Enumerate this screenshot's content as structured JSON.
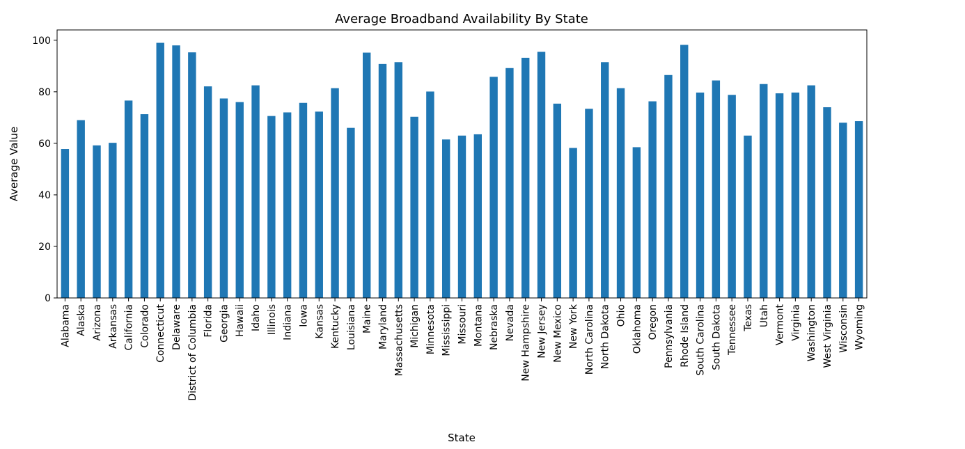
{
  "chart_data": {
    "type": "bar",
    "title": "Average Broadband Availability By State",
    "xlabel": "State",
    "ylabel": "Average Value",
    "ylim": [
      0,
      104
    ],
    "yticks": [
      0,
      20,
      40,
      60,
      80,
      100
    ],
    "grid": false,
    "bar_color": "#1f77b4",
    "categories": [
      "Alabama",
      "Alaska",
      "Arizona",
      "Arkansas",
      "California",
      "Colorado",
      "Connecticut",
      "Delaware",
      "District of Columbia",
      "Florida",
      "Georgia",
      "Hawaii",
      "Idaho",
      "Illinois",
      "Indiana",
      "Iowa",
      "Kansas",
      "Kentucky",
      "Louisiana",
      "Maine",
      "Maryland",
      "Massachusetts",
      "Michigan",
      "Minnesota",
      "Mississippi",
      "Missouri",
      "Montana",
      "Nebraska",
      "Nevada",
      "New Hampshire",
      "New Jersey",
      "New Mexico",
      "New York",
      "North Carolina",
      "North Dakota",
      "Ohio",
      "Oklahoma",
      "Oregon",
      "Pennsylvania",
      "Rhode Island",
      "South Carolina",
      "South Dakota",
      "Tennessee",
      "Texas",
      "Utah",
      "Vermont",
      "Virginia",
      "Washington",
      "West Virginia",
      "Wisconsin",
      "Wyoming"
    ],
    "values": [
      57.8,
      69.0,
      59.2,
      60.2,
      76.6,
      71.3,
      99.0,
      98.0,
      95.3,
      82.1,
      77.4,
      76.0,
      82.5,
      70.6,
      72.0,
      75.7,
      72.3,
      81.4,
      66.0,
      95.2,
      90.8,
      91.5,
      70.3,
      80.1,
      61.5,
      63.0,
      63.5,
      85.8,
      89.2,
      93.2,
      95.5,
      75.4,
      58.2,
      73.4,
      91.5,
      81.4,
      58.5,
      76.3,
      86.5,
      98.2,
      79.7,
      84.4,
      78.8,
      63.0,
      83.0,
      79.4,
      79.7,
      82.5,
      74.0,
      68.0,
      68.6
    ]
  }
}
